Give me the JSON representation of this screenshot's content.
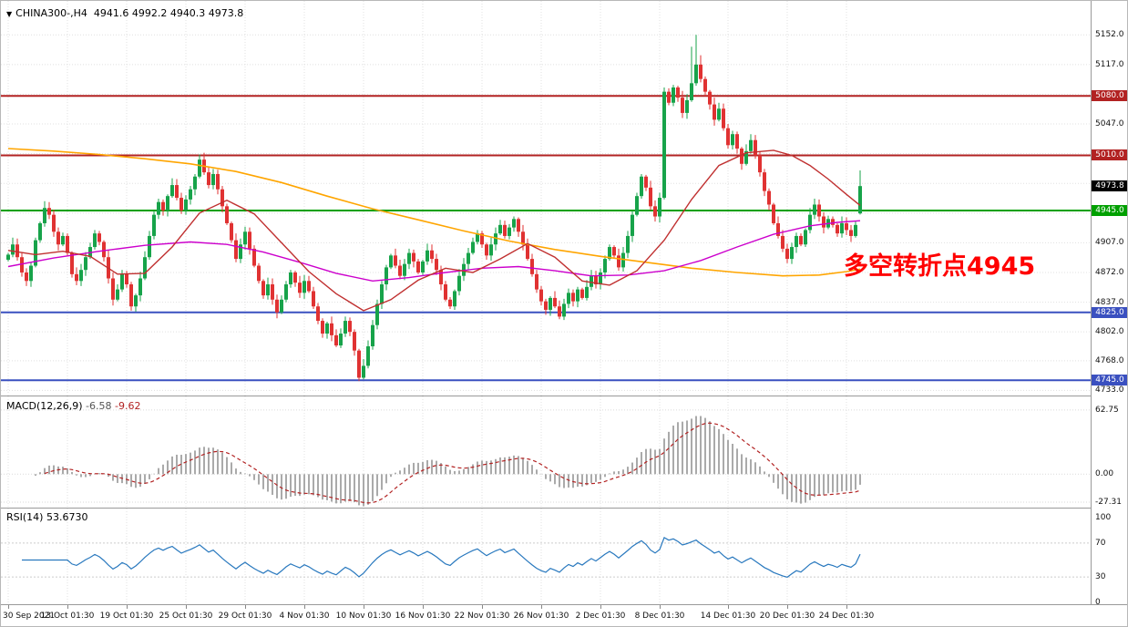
{
  "chart_data": [
    {
      "type": "candlestick",
      "symbol": "CHINA300-,H4",
      "timeframe": "H4",
      "ohlc_label": "4941.6 4992.2 4940.3 4973.8",
      "last": {
        "open": 4941.6,
        "high": 4992.2,
        "low": 4940.3,
        "close": 4973.8
      },
      "ylim": [
        4727,
        5192
      ],
      "grid_prices": [
        5152,
        5117,
        5082,
        5047,
        5012,
        4977,
        4942,
        4907,
        4872,
        4837,
        4802,
        4768,
        4733
      ],
      "yticks_plain": [
        {
          "label": "5152.0",
          "price": 5152
        },
        {
          "label": "5117.0",
          "price": 5117
        },
        {
          "label": "5047.0",
          "price": 5047
        },
        {
          "label": "4907.0",
          "price": 4907
        },
        {
          "label": "4872.0",
          "price": 4872
        },
        {
          "label": "4837.0",
          "price": 4837
        },
        {
          "label": "4802.0",
          "price": 4802
        },
        {
          "label": "4768.0",
          "price": 4768
        },
        {
          "label": "4733.0",
          "price": 4733
        }
      ],
      "hlines": [
        {
          "label": "5080.0",
          "price": 5080,
          "color": "#b22222",
          "width": 2
        },
        {
          "label": "5010.0",
          "price": 5010,
          "color": "#b22222",
          "width": 2
        },
        {
          "label": "4945.0",
          "price": 4945,
          "color": "#00a000",
          "width": 2
        },
        {
          "label": "4825.0",
          "price": 4825,
          "color": "#3a50c0",
          "width": 2
        },
        {
          "label": "4745.0",
          "price": 4745,
          "color": "#3a50c0",
          "width": 2
        }
      ],
      "current_price_label": {
        "label": "4973.8",
        "price": 4973.8,
        "bg": "#000000"
      },
      "annotation": {
        "text": "多空转折点4945",
        "color": "#ff0000"
      },
      "colors": {
        "up": "#17a34a",
        "down": "#e03232"
      },
      "x_labels": [
        {
          "text": "30 Sep 2021",
          "bar": 0
        },
        {
          "text": "13 Oct 01:30",
          "bar": 13
        },
        {
          "text": "19 Oct 01:30",
          "bar": 26
        },
        {
          "text": "25 Oct 01:30",
          "bar": 39
        },
        {
          "text": "29 Oct 01:30",
          "bar": 52
        },
        {
          "text": "4 Nov 01:30",
          "bar": 65
        },
        {
          "text": "10 Nov 01:30",
          "bar": 78
        },
        {
          "text": "16 Nov 01:30",
          "bar": 91
        },
        {
          "text": "22 Nov 01:30",
          "bar": 104
        },
        {
          "text": "26 Nov 01:30",
          "bar": 117
        },
        {
          "text": "2 Dec 01:30",
          "bar": 130
        },
        {
          "text": "8 Dec 01:30",
          "bar": 143
        },
        {
          "text": "14 Dec 01:30",
          "bar": 158
        },
        {
          "text": "20 Dec 01:30",
          "bar": 171
        },
        {
          "text": "24 Dec 01:30",
          "bar": 184
        }
      ],
      "closes": [
        4893,
        4905,
        4890,
        4872,
        4862,
        4880,
        4910,
        4930,
        4948,
        4940,
        4920,
        4905,
        4915,
        4895,
        4870,
        4862,
        4875,
        4890,
        4902,
        4918,
        4908,
        4890,
        4865,
        4840,
        4852,
        4870,
        4858,
        4832,
        4845,
        4865,
        4890,
        4915,
        4940,
        4955,
        4945,
        4962,
        4975,
        4960,
        4945,
        4958,
        4970,
        4985,
        5005,
        4990,
        4975,
        4988,
        4970,
        4950,
        4930,
        4910,
        4888,
        4905,
        4920,
        4900,
        4880,
        4862,
        4845,
        4858,
        4840,
        4825,
        4840,
        4858,
        4872,
        4860,
        4848,
        4862,
        4850,
        4832,
        4815,
        4800,
        4812,
        4798,
        4786,
        4800,
        4815,
        4802,
        4780,
        4748,
        4762,
        4785,
        4810,
        4835,
        4858,
        4878,
        4892,
        4880,
        4868,
        4882,
        4895,
        4885,
        4872,
        4885,
        4898,
        4888,
        4875,
        4858,
        4840,
        4832,
        4850,
        4868,
        4882,
        4895,
        4908,
        4918,
        4905,
        4892,
        4905,
        4918,
        4928,
        4915,
        4925,
        4935,
        4920,
        4905,
        4888,
        4870,
        4852,
        4838,
        4828,
        4842,
        4832,
        4820,
        4835,
        4848,
        4838,
        4852,
        4842,
        4855,
        4868,
        4858,
        4872,
        4888,
        4902,
        4892,
        4878,
        4895,
        4915,
        4940,
        4962,
        4985,
        4972,
        4950,
        4938,
        4960,
        5085,
        5072,
        5090,
        5078,
        5060,
        5075,
        5095,
        5117,
        5100,
        5085,
        5070,
        5052,
        5065,
        5042,
        5022,
        5035,
        5018,
        5000,
        5015,
        5028,
        5010,
        4990,
        4968,
        4952,
        4930,
        4915,
        4900,
        4888,
        4902,
        4915,
        4905,
        4922,
        4940,
        4952,
        4938,
        4925,
        4935,
        4928,
        4918,
        4930,
        4922,
        4915,
        4928,
        4974
      ],
      "overrides": {
        "42": {
          "high": 5011
        },
        "77": {
          "low": 4744
        },
        "150": {
          "high": 5138
        },
        "151": {
          "high": 5152
        },
        "152": {
          "high": 5128
        },
        "187": {
          "open": 4941.6,
          "high": 4992.2,
          "low": 4940.3,
          "close": 4973.8
        }
      },
      "moving_averages": [
        {
          "name": "ma-slow-orange",
          "color": "#ffa500",
          "width": 1.6,
          "points": [
            [
              0,
              5018
            ],
            [
              10,
              5015
            ],
            [
              20,
              5011
            ],
            [
              30,
              5006
            ],
            [
              40,
              5000
            ],
            [
              50,
              4991
            ],
            [
              60,
              4978
            ],
            [
              70,
              4962
            ],
            [
              80,
              4947
            ],
            [
              90,
              4934
            ],
            [
              100,
              4921
            ],
            [
              110,
              4909
            ],
            [
              120,
              4899
            ],
            [
              130,
              4891
            ],
            [
              140,
              4884
            ],
            [
              150,
              4877
            ],
            [
              160,
              4872
            ],
            [
              170,
              4868
            ],
            [
              178,
              4869
            ],
            [
              184,
              4873
            ],
            [
              187,
              4876
            ]
          ]
        },
        {
          "name": "ma-mid-magenta",
          "color": "#cc00cc",
          "width": 1.4,
          "points": [
            [
              0,
              4879
            ],
            [
              10,
              4889
            ],
            [
              20,
              4897
            ],
            [
              30,
              4904
            ],
            [
              40,
              4908
            ],
            [
              48,
              4905
            ],
            [
              56,
              4896
            ],
            [
              64,
              4884
            ],
            [
              72,
              4871
            ],
            [
              80,
              4862
            ],
            [
              88,
              4866
            ],
            [
              96,
              4872
            ],
            [
              104,
              4877
            ],
            [
              112,
              4879
            ],
            [
              120,
              4874
            ],
            [
              128,
              4868
            ],
            [
              136,
              4869
            ],
            [
              144,
              4874
            ],
            [
              152,
              4886
            ],
            [
              160,
              4902
            ],
            [
              168,
              4917
            ],
            [
              176,
              4927
            ],
            [
              182,
              4931
            ],
            [
              187,
              4933
            ]
          ]
        },
        {
          "name": "ma-fast-red",
          "color": "#c03030",
          "width": 1.4,
          "points": [
            [
              0,
              4898
            ],
            [
              6,
              4893
            ],
            [
              12,
              4897
            ],
            [
              18,
              4891
            ],
            [
              24,
              4870
            ],
            [
              30,
              4871
            ],
            [
              36,
              4902
            ],
            [
              42,
              4942
            ],
            [
              48,
              4957
            ],
            [
              54,
              4941
            ],
            [
              60,
              4907
            ],
            [
              66,
              4873
            ],
            [
              72,
              4847
            ],
            [
              78,
              4827
            ],
            [
              84,
              4840
            ],
            [
              90,
              4863
            ],
            [
              96,
              4877
            ],
            [
              102,
              4872
            ],
            [
              108,
              4888
            ],
            [
              114,
              4906
            ],
            [
              120,
              4890
            ],
            [
              126,
              4862
            ],
            [
              132,
              4857
            ],
            [
              138,
              4874
            ],
            [
              144,
              4910
            ],
            [
              150,
              4958
            ],
            [
              156,
              4998
            ],
            [
              162,
              5013
            ],
            [
              168,
              5016
            ],
            [
              172,
              5010
            ],
            [
              176,
              4998
            ],
            [
              180,
              4982
            ],
            [
              184,
              4964
            ],
            [
              187,
              4951
            ]
          ]
        }
      ]
    },
    {
      "type": "macd_histogram",
      "title": "MACD(12,26,9)",
      "value_main": "-6.58",
      "value_signal": "-9.62",
      "params": [
        12,
        26,
        9
      ],
      "ylim": [
        -32.7,
        76
      ],
      "yticks": [
        {
          "label": "62.75",
          "value": 62.75
        },
        {
          "label": "0.00",
          "value": 0
        },
        {
          "label": "-27.31",
          "value": -27.31
        }
      ],
      "histogram_color": "#aaaaaa",
      "signal_color": "#b22222",
      "signal_style": "dashed"
    },
    {
      "type": "line",
      "title": "RSI(14)",
      "value": "53.6730",
      "period": 14,
      "ylim": [
        -2.1,
        110.6
      ],
      "yticks": [
        {
          "label": "100",
          "value": 100
        },
        {
          "label": "70",
          "value": 70
        },
        {
          "label": "30",
          "value": 30
        },
        {
          "label": "0",
          "value": 0
        }
      ],
      "levels": [
        70,
        30
      ],
      "line_color": "#2878be"
    }
  ],
  "header": {
    "expander_icon": "▼"
  }
}
